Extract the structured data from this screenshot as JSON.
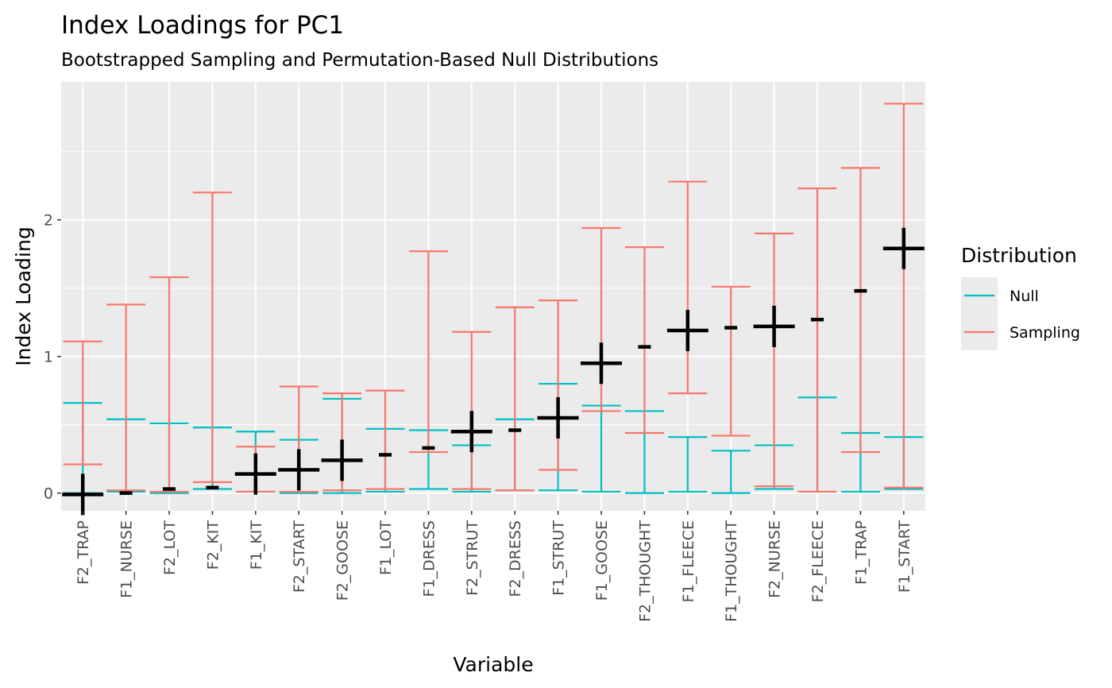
{
  "chart_data": {
    "type": "errorbar",
    "title": "Index Loadings for PC1",
    "subtitle": "Bootstrapped Sampling and Permutation-Based Null Distributions",
    "xlabel": "Variable",
    "ylabel": "Index Loading",
    "ylim": [
      -0.13,
      3.01
    ],
    "yticks": [
      0,
      1,
      2
    ],
    "categories": [
      "F2_TRAP",
      "F1_NURSE",
      "F2_LOT",
      "F2_KIT",
      "F1_KIT",
      "F2_START",
      "F2_GOOSE",
      "F1_LOT",
      "F1_DRESS",
      "F2_STRUT",
      "F2_DRESS",
      "F1_STRUT",
      "F1_GOOSE",
      "F2_THOUGHT",
      "F1_FLEECE",
      "F1_THOUGHT",
      "F2_NURSE",
      "F2_FLEECE",
      "F1_TRAP",
      "F1_START"
    ],
    "legend": {
      "title": "Distribution",
      "position": "right",
      "entries": [
        {
          "name": "Null",
          "color": "#00bfc4"
        },
        {
          "name": "Sampling",
          "color": "#f8766d"
        }
      ]
    },
    "series": [
      {
        "name": "Null",
        "color": "#00bfc4",
        "lower": [
          0.0,
          0.01,
          0.0,
          0.03,
          0.01,
          0.0,
          0.0,
          0.01,
          0.03,
          0.01,
          0.02,
          0.02,
          0.01,
          0.0,
          0.01,
          0.0,
          0.03,
          0.01,
          0.01,
          0.03
        ],
        "upper": [
          0.66,
          0.54,
          0.51,
          0.48,
          0.45,
          0.39,
          0.69,
          0.47,
          0.46,
          0.35,
          0.54,
          0.8,
          0.64,
          0.6,
          0.41,
          0.31,
          0.35,
          0.7,
          0.44,
          0.41
        ]
      },
      {
        "name": "Sampling",
        "color": "#f8766d",
        "lower": [
          0.21,
          0.02,
          0.01,
          0.08,
          0.01,
          0.01,
          0.02,
          0.03,
          0.3,
          0.03,
          0.02,
          0.17,
          0.6,
          0.44,
          0.73,
          0.42,
          0.05,
          0.01,
          0.3,
          0.04
        ],
        "upper": [
          1.11,
          1.38,
          1.58,
          2.2,
          0.34,
          0.78,
          0.73,
          0.75,
          1.77,
          1.18,
          1.36,
          1.41,
          1.94,
          1.8,
          2.28,
          1.51,
          1.9,
          2.23,
          2.38,
          2.85
        ]
      }
    ],
    "points": {
      "color": "#000000",
      "values": [
        -0.01,
        0.0,
        0.03,
        0.04,
        0.14,
        0.17,
        0.24,
        0.28,
        0.33,
        0.45,
        0.46,
        0.55,
        0.95,
        1.07,
        1.19,
        1.21,
        1.22,
        1.27,
        1.48,
        1.79
      ],
      "significant": [
        true,
        false,
        false,
        false,
        true,
        true,
        true,
        false,
        false,
        true,
        false,
        true,
        true,
        false,
        true,
        false,
        true,
        false,
        false,
        true
      ]
    },
    "grid": true
  }
}
